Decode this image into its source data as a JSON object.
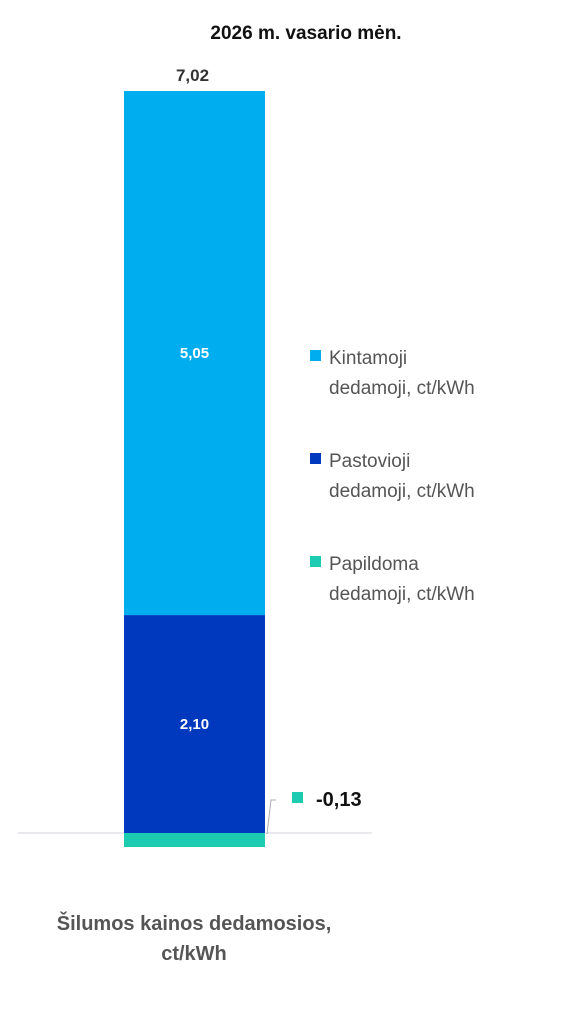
{
  "chart_data": {
    "type": "bar",
    "stacked": true,
    "title": "2026 m.  vasario mėn.",
    "categories": [
      "Šilumos kainos dedamosios, ct/kWh"
    ],
    "category_label_lines": [
      "Šilumos kainos dedamosios,",
      "ct/kWh"
    ],
    "total_label": "7,02",
    "series": [
      {
        "name": "Kintamoji dedamoji, ct/kWh",
        "legend_lines": [
          "Kintamoji",
          "dedamoji, ct/kWh"
        ],
        "values": [
          5.05
        ],
        "value_label": "5,05",
        "color": "#00AEEF"
      },
      {
        "name": "Pastovioji dedamoji, ct/kWh",
        "legend_lines": [
          "Pastovioji",
          "dedamoji, ct/kWh"
        ],
        "values": [
          2.1
        ],
        "value_label": "2,10",
        "color": "#0038BE"
      },
      {
        "name": "Papildoma dedamoji, ct/kWh",
        "legend_lines": [
          "Papildoma",
          "dedamoji, ct/kWh"
        ],
        "values": [
          -0.13
        ],
        "value_label": "-0,13",
        "color": "#1DCCB0"
      }
    ],
    "baseline_color": "#D0D3D8",
    "grid": false,
    "legend_position": "right"
  }
}
